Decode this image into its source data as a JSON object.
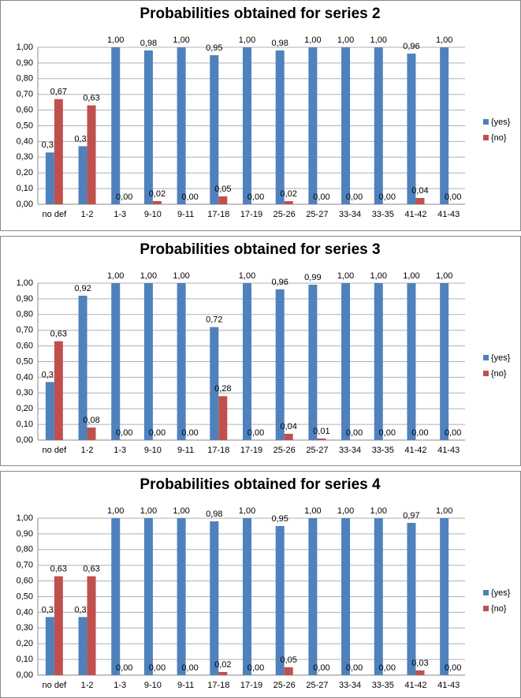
{
  "chart_data": [
    {
      "type": "bar",
      "title": "Probabilities obtained for series 2",
      "categories": [
        "no def",
        "1-2",
        "1-3",
        "9-10",
        "9-11",
        "17-18",
        "17-19",
        "25-26",
        "25-27",
        "33-34",
        "33-35",
        "41-42",
        "41-43"
      ],
      "series": [
        {
          "name": "{yes}",
          "color": "#4f81bd",
          "values": [
            0.33,
            0.37,
            1,
            0.98,
            1,
            0.95,
            1,
            0.98,
            1,
            1,
            1,
            0.96,
            1
          ],
          "value_labels": [
            "0,33",
            "0,37",
            "1,00",
            "0,98",
            "1,00",
            "0,95",
            "1,00",
            "0,98",
            "1,00",
            "1,00",
            "1,00",
            "0,96",
            "1,00"
          ]
        },
        {
          "name": "{no}",
          "color": "#c0504d",
          "values": [
            0.67,
            0.63,
            0,
            0.02,
            0,
            0.05,
            0,
            0.02,
            0,
            0,
            0,
            0.04,
            0
          ],
          "value_labels": [
            "0,67",
            "0,63",
            "0,00",
            "0,02",
            "0,00",
            "0,05",
            "0,00",
            "0,02",
            "0,00",
            "0,00",
            "0,00",
            "0,04",
            "0,00"
          ]
        }
      ],
      "ylim": [
        0,
        1
      ],
      "yticks": [
        {
          "value": 0,
          "label": "0,00"
        },
        {
          "value": 0.1,
          "label": "0,10"
        },
        {
          "value": 0.2,
          "label": "0,20"
        },
        {
          "value": 0.3,
          "label": "0,30"
        },
        {
          "value": 0.4,
          "label": "0,40"
        },
        {
          "value": 0.5,
          "label": "0,50"
        },
        {
          "value": 0.6,
          "label": "0,60"
        },
        {
          "value": 0.7,
          "label": "0,70"
        },
        {
          "value": 0.8,
          "label": "0,80"
        },
        {
          "value": 0.9,
          "label": "0,90"
        },
        {
          "value": 1,
          "label": "1,00"
        }
      ],
      "grid": true,
      "legend": "right"
    },
    {
      "type": "bar",
      "title": "Probabilities obtained for series 3",
      "categories": [
        "no def",
        "1-2",
        "1-3",
        "9-10",
        "9-11",
        "17-18",
        "17-19",
        "25-26",
        "25-27",
        "33-34",
        "33-35",
        "41-42",
        "41-43"
      ],
      "series": [
        {
          "name": "{yes}",
          "color": "#4f81bd",
          "values": [
            0.37,
            0.92,
            1,
            1,
            1,
            0.72,
            1,
            0.96,
            0.99,
            1,
            1,
            1,
            1
          ],
          "value_labels": [
            "0,37",
            "0,92",
            "1,00",
            "1,00",
            "1,00",
            "0,72",
            "1,00",
            "0,96",
            "0,99",
            "1,00",
            "1,00",
            "1,00",
            "1,00"
          ]
        },
        {
          "name": "{no}",
          "color": "#c0504d",
          "values": [
            0.63,
            0.08,
            0,
            0,
            0,
            0.28,
            0,
            0.04,
            0.01,
            0,
            0,
            0,
            0
          ],
          "value_labels": [
            "0,63",
            "0,08",
            "0,00",
            "0,00",
            "0,00",
            "0,28",
            "0,00",
            "0,04",
            "0,01",
            "0,00",
            "0,00",
            "0,00",
            "0,00"
          ]
        }
      ],
      "ylim": [
        0,
        1
      ],
      "yticks": [
        {
          "value": 0,
          "label": "0,00"
        },
        {
          "value": 0.1,
          "label": "0,10"
        },
        {
          "value": 0.2,
          "label": "0,20"
        },
        {
          "value": 0.3,
          "label": "0,30"
        },
        {
          "value": 0.4,
          "label": "0,40"
        },
        {
          "value": 0.5,
          "label": "0,50"
        },
        {
          "value": 0.6,
          "label": "0,60"
        },
        {
          "value": 0.7,
          "label": "0,70"
        },
        {
          "value": 0.8,
          "label": "0,80"
        },
        {
          "value": 0.9,
          "label": "0,90"
        },
        {
          "value": 1,
          "label": "1,00"
        }
      ],
      "grid": true,
      "legend": "right"
    },
    {
      "type": "bar",
      "title": "Probabilities obtained for series 4",
      "categories": [
        "no def",
        "1-2",
        "1-3",
        "9-10",
        "9-11",
        "17-18",
        "17-19",
        "25-26",
        "25-27",
        "33-34",
        "33-35",
        "41-42",
        "41-43"
      ],
      "series": [
        {
          "name": "{yes}",
          "color": "#4f81bd",
          "values": [
            0.37,
            0.37,
            1,
            1,
            1,
            0.98,
            1,
            0.95,
            1,
            1,
            1,
            0.97,
            1
          ],
          "value_labels": [
            "0,37",
            "0,37",
            "1,00",
            "1,00",
            "1,00",
            "0,98",
            "1,00",
            "0,95",
            "1,00",
            "1,00",
            "1,00",
            "0,97",
            "1,00"
          ]
        },
        {
          "name": "{no}",
          "color": "#c0504d",
          "values": [
            0.63,
            0.63,
            0,
            0,
            0,
            0.02,
            0,
            0.05,
            0,
            0,
            0,
            0.03,
            0
          ],
          "value_labels": [
            "0,63",
            "0,63",
            "0,00",
            "0,00",
            "0,00",
            "0,02",
            "0,00",
            "0,05",
            "0,00",
            "0,00",
            "0,00",
            "0,03",
            "0,00"
          ]
        }
      ],
      "ylim": [
        0,
        1
      ],
      "yticks": [
        {
          "value": 0,
          "label": "0,00"
        },
        {
          "value": 0.1,
          "label": "0,10"
        },
        {
          "value": 0.2,
          "label": "0,20"
        },
        {
          "value": 0.3,
          "label": "0,30"
        },
        {
          "value": 0.4,
          "label": "0,40"
        },
        {
          "value": 0.5,
          "label": "0,50"
        },
        {
          "value": 0.6,
          "label": "0,60"
        },
        {
          "value": 0.7,
          "label": "0,70"
        },
        {
          "value": 0.8,
          "label": "0,80"
        },
        {
          "value": 0.9,
          "label": "0,90"
        },
        {
          "value": 1,
          "label": "1,00"
        }
      ],
      "grid": true,
      "legend": "right"
    }
  ]
}
